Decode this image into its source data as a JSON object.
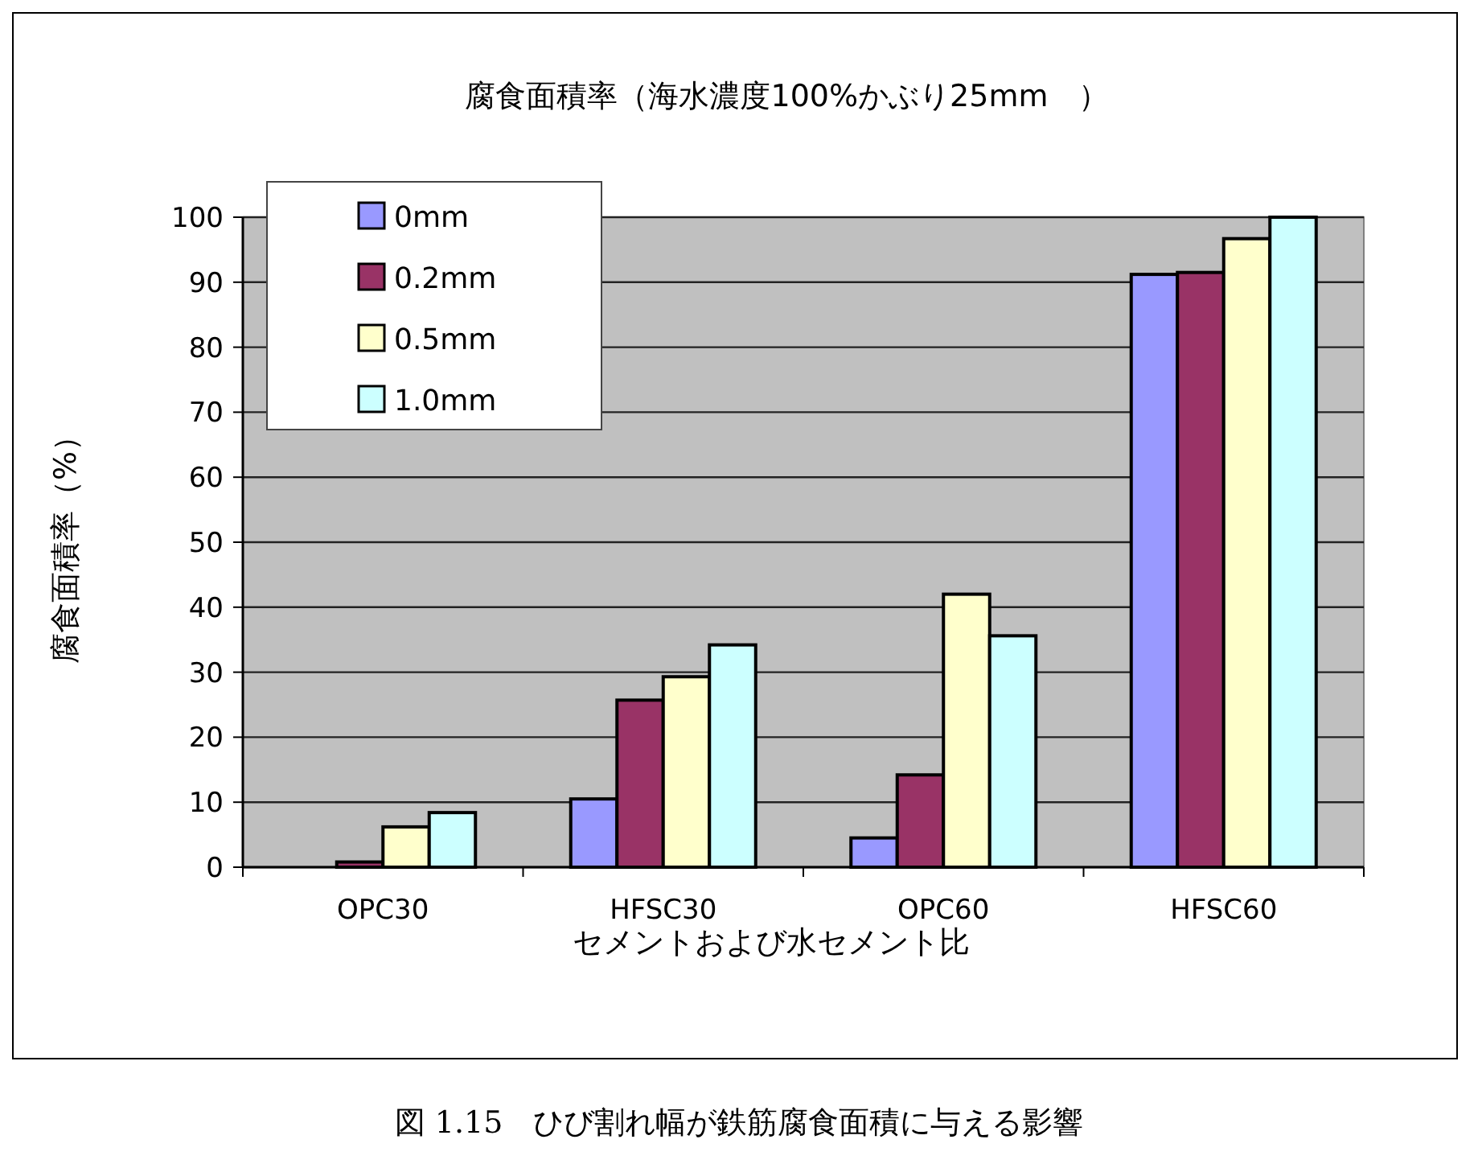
{
  "chart_data": {
    "type": "bar",
    "title": "腐食面積率（海水濃度100%かぶり25mm　）",
    "xlabel": "セメントおよび水セメント比",
    "ylabel": "腐食面積率（%）",
    "categories": [
      "OPC30",
      "HFSC30",
      "OPC60",
      "HFSC60"
    ],
    "series": [
      {
        "name": "0mm",
        "color": "#9999ff",
        "values": [
          0,
          10.5,
          4.5,
          91.2
        ]
      },
      {
        "name": "0.2mm",
        "color": "#993366",
        "values": [
          0.8,
          25.7,
          14.2,
          91.5
        ]
      },
      {
        "name": "0.5mm",
        "color": "#ffffcc",
        "values": [
          6.2,
          29.3,
          42.0,
          96.7
        ]
      },
      {
        "name": "1.0mm",
        "color": "#ccffff",
        "values": [
          8.4,
          34.2,
          35.6,
          100
        ]
      }
    ],
    "ylim": [
      0,
      100
    ],
    "yticks": [
      0,
      10,
      20,
      30,
      40,
      50,
      60,
      70,
      80,
      90,
      100
    ],
    "grid": "y",
    "legend": "top left",
    "annotations": [
      "図 1.15　ひび割れ幅が鉄筋腐食面積に与える影響"
    ]
  }
}
